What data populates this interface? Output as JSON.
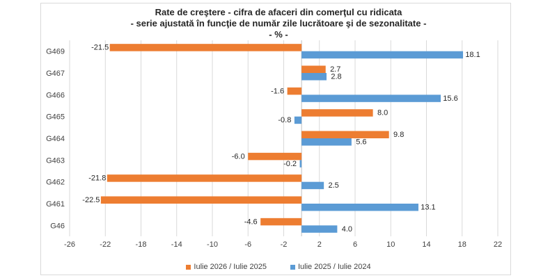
{
  "title": {
    "line1": "Rate de creştere - cifra de afaceri din comerţul cu ridicata",
    "line2": "- serie ajustată în funcţie de număr zile lucrătoare şi de sezonalitate -",
    "line3": "- % -"
  },
  "colors": {
    "series1": "#ed7d31",
    "series2": "#5b9bd5",
    "grid": "#d9d9d9",
    "axis_text": "#404040"
  },
  "chart_data": {
    "type": "bar",
    "orientation": "horizontal",
    "categories": [
      "G469",
      "G467",
      "G466",
      "G465",
      "G464",
      "G463",
      "G462",
      "G461",
      "G46"
    ],
    "series": [
      {
        "name": "Iulie 2026 / Iulie 2025",
        "values": [
          -21.5,
          2.7,
          -1.6,
          8.0,
          9.8,
          -6.0,
          -21.8,
          -22.5,
          -4.6
        ]
      },
      {
        "name": "Iulie 2025 / Iulie 2024",
        "values": [
          18.1,
          2.8,
          15.6,
          -0.8,
          5.6,
          -0.2,
          2.5,
          13.1,
          4.0
        ]
      }
    ],
    "xlim": [
      -26,
      22
    ],
    "xticks": [
      -26,
      -22,
      -18,
      -14,
      -10,
      -6,
      -2,
      2,
      6,
      10,
      14,
      18,
      22
    ],
    "grid": "vertical",
    "legend_position": "bottom"
  }
}
